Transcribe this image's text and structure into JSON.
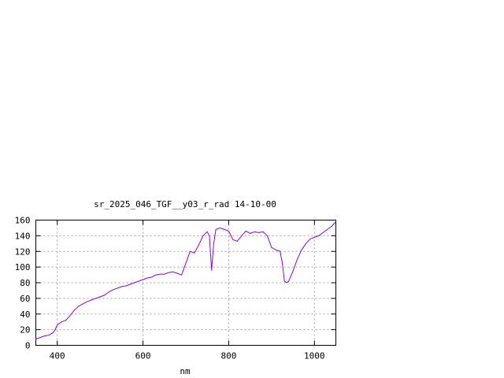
{
  "chart_data": {
    "type": "line",
    "title": "sr_2025_046_TGF__y03_r_rad 14-10-00",
    "xlabel": "nm",
    "ylabel": "",
    "xlim": [
      350,
      1050
    ],
    "ylim": [
      0,
      160
    ],
    "x_ticks": [
      400,
      600,
      800,
      1000
    ],
    "y_ticks": [
      0,
      20,
      40,
      60,
      80,
      100,
      120,
      140,
      160
    ],
    "grid": true,
    "series": [
      {
        "color": "#9400d3",
        "x": [
          350,
          360,
          370,
          380,
          390,
          395,
          400,
          410,
          420,
          430,
          440,
          450,
          460,
          470,
          480,
          490,
          500,
          510,
          520,
          530,
          540,
          550,
          560,
          570,
          580,
          590,
          600,
          610,
          620,
          630,
          640,
          650,
          660,
          670,
          680,
          690,
          700,
          710,
          720,
          730,
          740,
          750,
          755,
          760,
          765,
          770,
          780,
          790,
          800,
          810,
          820,
          830,
          840,
          850,
          860,
          870,
          880,
          890,
          900,
          910,
          920,
          925,
          930,
          935,
          940,
          950,
          960,
          970,
          980,
          990,
          1000,
          1010,
          1020,
          1030,
          1040,
          1050
        ],
        "y": [
          8,
          10,
          12,
          13,
          16,
          20,
          26,
          30,
          32,
          38,
          45,
          50,
          53,
          56,
          58,
          60,
          62,
          64,
          68,
          71,
          73,
          75,
          76,
          78,
          80,
          82,
          84,
          86,
          87,
          90,
          91,
          91,
          93,
          94,
          92,
          90,
          105,
          120,
          118,
          128,
          140,
          145,
          140,
          96,
          130,
          148,
          150,
          148,
          146,
          135,
          133,
          140,
          146,
          143,
          145,
          144,
          145,
          140,
          125,
          122,
          120,
          105,
          82,
          80,
          82,
          95,
          110,
          122,
          130,
          136,
          138,
          140,
          144,
          148,
          152,
          158
        ]
      }
    ]
  }
}
